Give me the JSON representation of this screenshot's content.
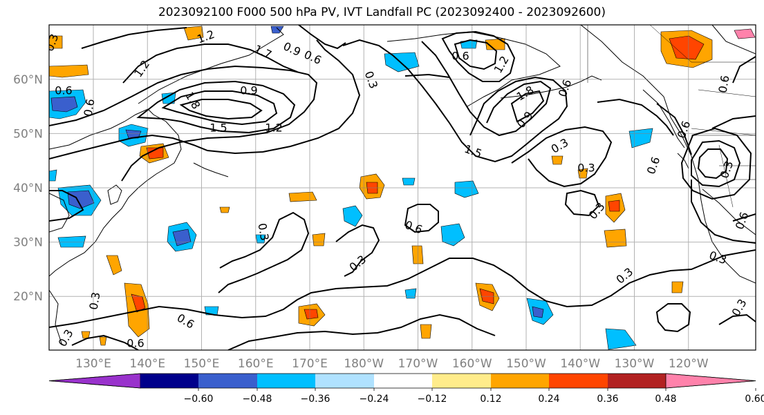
{
  "title": "2023092100 F000 500 hPa PV, IVT Landfall PC (2023092400 - 2023092600)",
  "lat_labels": [
    "60°N",
    "50°N",
    "40°N",
    "30°N",
    "20°N"
  ],
  "lat_values": [
    60,
    50,
    40,
    30,
    20
  ],
  "lon_labels": [
    "130°E",
    "140°E",
    "150°E",
    "160°E",
    "170°E",
    "180°W",
    "170°W",
    "160°W",
    "150°W",
    "140°W",
    "130°W",
    "120°W"
  ],
  "lon_values": [
    130,
    140,
    150,
    160,
    170,
    180,
    190,
    200,
    210,
    220,
    230,
    240
  ],
  "colorbar": {
    "colors": [
      "#9932cc",
      "#00008b",
      "#3a5fcd",
      "#00bfff",
      "#b0e2ff",
      "#ffffff",
      "#ffec8b",
      "#ffa500",
      "#ff4500",
      "#b22222",
      "#ff82ab"
    ],
    "tick_labels": [
      "−0.60",
      "−0.48",
      "−0.36",
      "−0.24",
      "−0.12",
      "0.12",
      "0.24",
      "0.36",
      "0.48",
      "0.60"
    ]
  },
  "contour_labels": [
    "1.2",
    "0.3",
    "0.9",
    "0.6",
    "1.7",
    "1.2",
    "0.6",
    "0.6",
    "1.8",
    "0.9",
    "1.5",
    "1.2",
    "0.3",
    "0.6",
    "1.2",
    "1.5",
    "0.9",
    "1.8",
    "0.6",
    "0.3",
    "0.3",
    "0.3",
    "0.6",
    "0.3",
    "0.6",
    "0.6",
    "0.6",
    "0.3",
    "0.3",
    "0.3",
    "0.6",
    "0.3",
    "0.3",
    "0.6",
    "0.6",
    "0.3",
    "0.3"
  ]
}
